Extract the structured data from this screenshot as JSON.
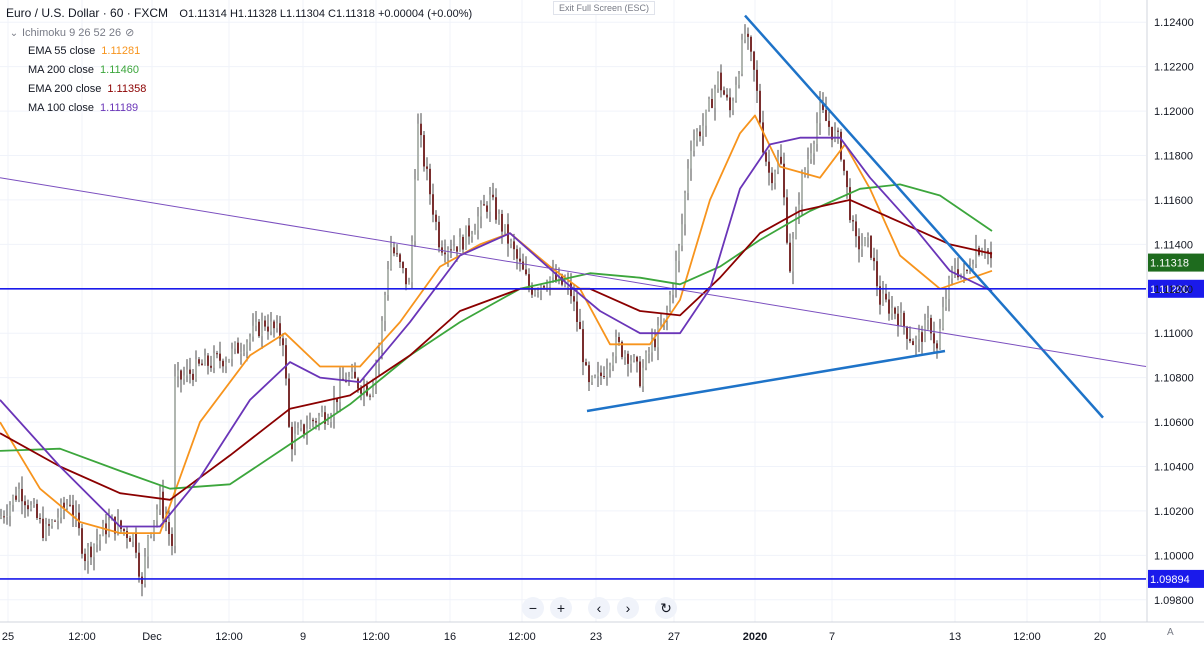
{
  "header": {
    "symbol": "Euro / U.S. Dollar · 60 · FXCM",
    "ohlc": "O1.11314  H1.11328  L1.11304  C1.11318  +0.00004 (+0.00%)"
  },
  "indicators": [
    {
      "name": "Ichimoku 9 26 52 26",
      "value": "",
      "color": "#787b86"
    },
    {
      "name": "EMA 55 close",
      "value": "1.11281",
      "color": "#f7941d"
    },
    {
      "name": "MA 200 close",
      "value": "1.11460",
      "color": "#3ca63c"
    },
    {
      "name": "EMA 200 close",
      "value": "1.11358",
      "color": "#8b0000"
    },
    {
      "name": "MA 100 close",
      "value": "1.11189",
      "color": "#6a35b8"
    }
  ],
  "exit_full_screen": "Exit Full Screen (ESC)",
  "controls": {
    "zoom_out": "−",
    "zoom_in": "+",
    "back": "‹",
    "forward": "›",
    "reset": "↻"
  },
  "auto_label": "A",
  "colors": {
    "up": "#26a69a",
    "down": "#c62828",
    "candle": "#7a2e2e",
    "ema55": "#f7941d",
    "ma200": "#3ca63c",
    "ema200": "#8b0000",
    "ma100": "#6a35b8",
    "trendline": "#1e73c8",
    "hline": "#1a1aeb",
    "diagonal": "#7b4fbf",
    "price_tag": "#1e6b1e"
  },
  "chart_data": {
    "type": "candlestick",
    "title": "Euro / U.S. Dollar · 60 · FXCM",
    "y_range": [
      1.097,
      1.125
    ],
    "y_ticks": [
      "1.12400",
      "1.12200",
      "1.12000",
      "1.11800",
      "1.11600",
      "1.11400",
      "1.11200",
      "1.11000",
      "1.10800",
      "1.10600",
      "1.10400",
      "1.10200",
      "1.10000",
      "1.09800"
    ],
    "x_range": [
      0,
      1146
    ],
    "x_ticks": [
      {
        "label": "25",
        "x": 8
      },
      {
        "label": "12:00",
        "x": 82
      },
      {
        "label": "Dec",
        "x": 152
      },
      {
        "label": "12:00",
        "x": 229
      },
      {
        "label": "9",
        "x": 303
      },
      {
        "label": "12:00",
        "x": 376
      },
      {
        "label": "16",
        "x": 450
      },
      {
        "label": "12:00",
        "x": 522
      },
      {
        "label": "23",
        "x": 596
      },
      {
        "label": "27",
        "x": 674
      },
      {
        "label": "2020",
        "x": 755
      },
      {
        "label": "7",
        "x": 832
      },
      {
        "label": "13",
        "x": 955
      },
      {
        "label": "12:00",
        "x": 1027
      },
      {
        "label": "20",
        "x": 1100
      }
    ],
    "price_path": [
      [
        0,
        1.1017
      ],
      [
        20,
        1.103
      ],
      [
        45,
        1.101
      ],
      [
        70,
        1.1025
      ],
      [
        85,
        1.1
      ],
      [
        110,
        1.1015
      ],
      [
        135,
        1.1008
      ],
      [
        142,
        1.0985
      ],
      [
        148,
        1.101
      ],
      [
        160,
        1.1025
      ],
      [
        172,
        1.1005
      ],
      [
        175,
        1.1078
      ],
      [
        200,
        1.1085
      ],
      [
        230,
        1.109
      ],
      [
        265,
        1.1105
      ],
      [
        283,
        1.1098
      ],
      [
        290,
        1.105
      ],
      [
        310,
        1.106
      ],
      [
        330,
        1.1065
      ],
      [
        345,
        1.108
      ],
      [
        370,
        1.1075
      ],
      [
        380,
        1.1095
      ],
      [
        390,
        1.114
      ],
      [
        410,
        1.112
      ],
      [
        417,
        1.1195
      ],
      [
        425,
        1.1175
      ],
      [
        440,
        1.114
      ],
      [
        460,
        1.114
      ],
      [
        490,
        1.116
      ],
      [
        510,
        1.114
      ],
      [
        530,
        1.112
      ],
      [
        550,
        1.1125
      ],
      [
        570,
        1.112
      ],
      [
        580,
        1.11
      ],
      [
        588,
        1.1075
      ],
      [
        600,
        1.108
      ],
      [
        615,
        1.1095
      ],
      [
        630,
        1.109
      ],
      [
        640,
        1.108
      ],
      [
        652,
        1.1095
      ],
      [
        665,
        1.1105
      ],
      [
        680,
        1.114
      ],
      [
        690,
        1.1185
      ],
      [
        705,
        1.1195
      ],
      [
        718,
        1.1215
      ],
      [
        730,
        1.12
      ],
      [
        745,
        1.1235
      ],
      [
        755,
        1.1215
      ],
      [
        763,
        1.1185
      ],
      [
        770,
        1.117
      ],
      [
        780,
        1.118
      ],
      [
        790,
        1.113
      ],
      [
        800,
        1.1165
      ],
      [
        820,
        1.12
      ],
      [
        840,
        1.1185
      ],
      [
        855,
        1.114
      ],
      [
        870,
        1.114
      ],
      [
        880,
        1.1115
      ],
      [
        895,
        1.111
      ],
      [
        915,
        1.1095
      ],
      [
        930,
        1.1105
      ],
      [
        937,
        1.1092
      ],
      [
        945,
        1.1115
      ],
      [
        955,
        1.113
      ],
      [
        965,
        1.1125
      ],
      [
        975,
        1.1138
      ],
      [
        985,
        1.114
      ],
      [
        992,
        1.11318
      ]
    ],
    "series": [
      {
        "name": "EMA 55 close",
        "color": "#f7941d",
        "points": [
          [
            0,
            1.106
          ],
          [
            40,
            1.103
          ],
          [
            80,
            1.1015
          ],
          [
            120,
            1.101
          ],
          [
            160,
            1.101
          ],
          [
            200,
            1.106
          ],
          [
            250,
            1.109
          ],
          [
            285,
            1.11
          ],
          [
            320,
            1.1085
          ],
          [
            360,
            1.1085
          ],
          [
            400,
            1.1105
          ],
          [
            440,
            1.113
          ],
          [
            480,
            1.114
          ],
          [
            510,
            1.1145
          ],
          [
            550,
            1.113
          ],
          [
            580,
            1.112
          ],
          [
            610,
            1.1095
          ],
          [
            650,
            1.1095
          ],
          [
            680,
            1.1115
          ],
          [
            710,
            1.116
          ],
          [
            740,
            1.119
          ],
          [
            755,
            1.1198
          ],
          [
            780,
            1.1175
          ],
          [
            820,
            1.117
          ],
          [
            845,
            1.1185
          ],
          [
            870,
            1.1165
          ],
          [
            900,
            1.1135
          ],
          [
            940,
            1.112
          ],
          [
            992,
            1.11281
          ]
        ]
      },
      {
        "name": "MA 200 close",
        "color": "#3ca63c",
        "points": [
          [
            0,
            1.1047
          ],
          [
            60,
            1.1048
          ],
          [
            120,
            1.1038
          ],
          [
            170,
            1.103
          ],
          [
            230,
            1.1032
          ],
          [
            290,
            1.105
          ],
          [
            350,
            1.1068
          ],
          [
            410,
            1.109
          ],
          [
            460,
            1.1105
          ],
          [
            520,
            1.112
          ],
          [
            590,
            1.1127
          ],
          [
            640,
            1.1125
          ],
          [
            680,
            1.1122
          ],
          [
            720,
            1.113
          ],
          [
            760,
            1.1142
          ],
          [
            810,
            1.1155
          ],
          [
            860,
            1.1165
          ],
          [
            900,
            1.1167
          ],
          [
            940,
            1.1162
          ],
          [
            992,
            1.1146
          ]
        ]
      },
      {
        "name": "EMA 200 close",
        "color": "#8b0000",
        "points": [
          [
            0,
            1.1055
          ],
          [
            60,
            1.104
          ],
          [
            120,
            1.1028
          ],
          [
            170,
            1.1025
          ],
          [
            230,
            1.1045
          ],
          [
            290,
            1.1066
          ],
          [
            350,
            1.1072
          ],
          [
            410,
            1.109
          ],
          [
            460,
            1.111
          ],
          [
            520,
            1.112
          ],
          [
            590,
            1.112
          ],
          [
            640,
            1.111
          ],
          [
            680,
            1.1108
          ],
          [
            720,
            1.1125
          ],
          [
            760,
            1.1145
          ],
          [
            800,
            1.1155
          ],
          [
            850,
            1.116
          ],
          [
            900,
            1.115
          ],
          [
            950,
            1.114
          ],
          [
            992,
            1.11358
          ]
        ]
      },
      {
        "name": "MA 100 close",
        "color": "#6a35b8",
        "points": [
          [
            0,
            1.107
          ],
          [
            60,
            1.104
          ],
          [
            120,
            1.1013
          ],
          [
            160,
            1.1013
          ],
          [
            200,
            1.1035
          ],
          [
            250,
            1.107
          ],
          [
            290,
            1.1087
          ],
          [
            320,
            1.108
          ],
          [
            360,
            1.1078
          ],
          [
            410,
            1.1105
          ],
          [
            460,
            1.1135
          ],
          [
            510,
            1.1145
          ],
          [
            560,
            1.1125
          ],
          [
            600,
            1.111
          ],
          [
            640,
            1.11
          ],
          [
            680,
            1.11
          ],
          [
            710,
            1.112
          ],
          [
            740,
            1.1165
          ],
          [
            770,
            1.1185
          ],
          [
            800,
            1.1188
          ],
          [
            840,
            1.1188
          ],
          [
            870,
            1.117
          ],
          [
            910,
            1.115
          ],
          [
            950,
            1.1128
          ],
          [
            992,
            1.11189
          ]
        ]
      }
    ],
    "drawings": [
      {
        "kind": "trendline",
        "color": "#1e73c8",
        "from": [
          745,
          1.1243
        ],
        "to": [
          1103,
          1.1062
        ]
      },
      {
        "kind": "trendline",
        "color": "#1e73c8",
        "from": [
          587,
          1.1065
        ],
        "to": [
          945,
          1.1092
        ]
      },
      {
        "kind": "trendline",
        "color": "#7b4fbf",
        "from": [
          0,
          1.117
        ],
        "to": [
          1146,
          1.1085
        ]
      },
      {
        "kind": "hline",
        "color": "#1a1aeb",
        "price": 1.112,
        "label": "1.11200"
      },
      {
        "kind": "hline",
        "color": "#1a1aeb",
        "price": 1.09894,
        "label": "1.09894"
      }
    ],
    "last_price": {
      "value": 1.11318,
      "label": "1.11318"
    }
  }
}
